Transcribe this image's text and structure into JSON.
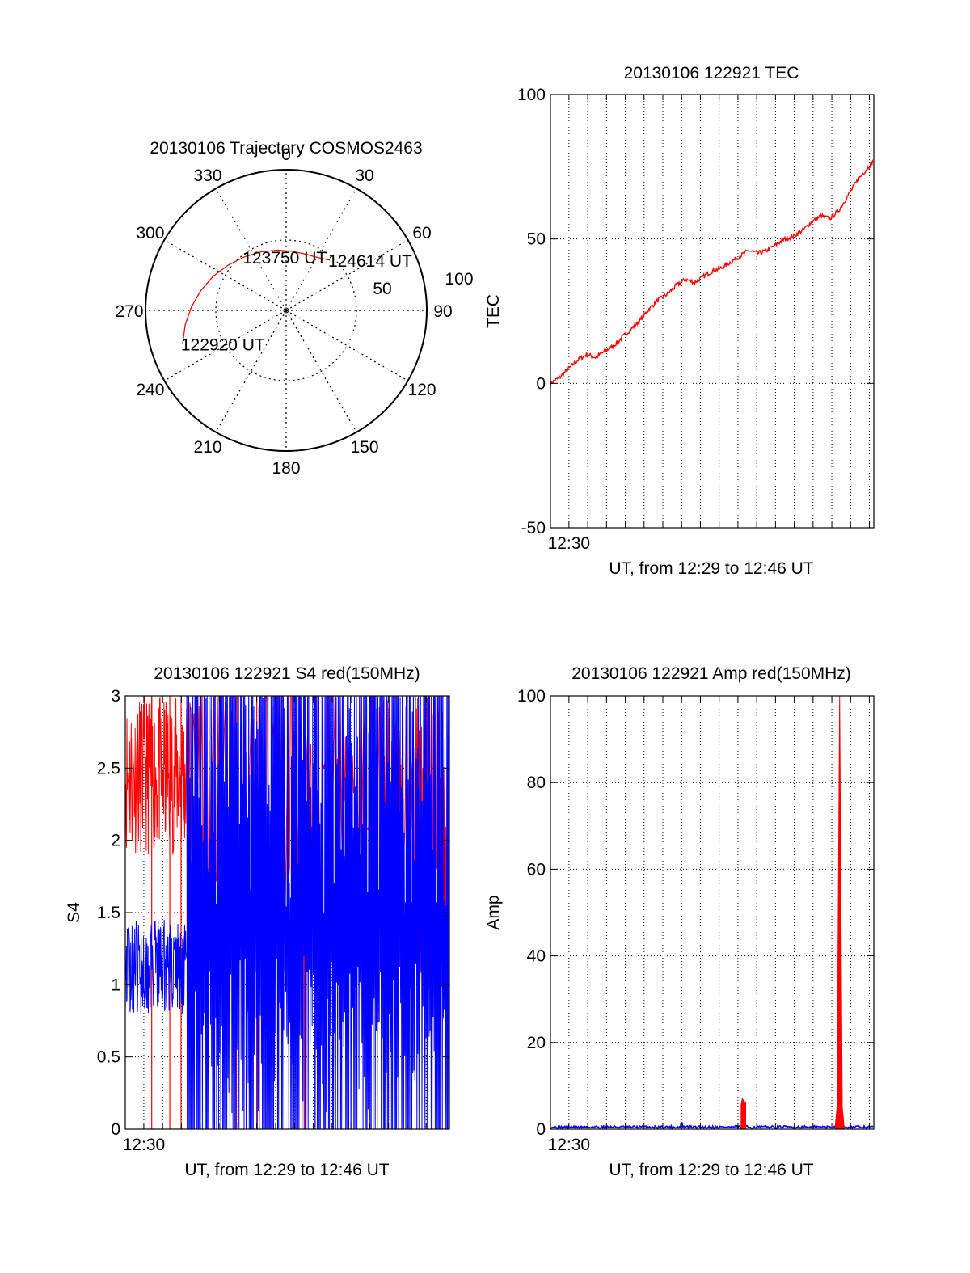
{
  "figure": {
    "colors": {
      "red": "#ff0000",
      "blue": "#0000ff",
      "axis": "#000000",
      "grid": "#000000"
    }
  },
  "chart_data": [
    {
      "id": "trajectory",
      "type": "polar",
      "title": "20130106 Trajectory COSMOS2463",
      "angle_labels": [
        "0",
        "30",
        "60",
        "90",
        "120",
        "150",
        "180",
        "210",
        "240",
        "270",
        "300",
        "330"
      ],
      "angle_values": [
        0,
        30,
        60,
        90,
        120,
        150,
        180,
        210,
        240,
        270,
        300,
        330
      ],
      "radius_labels": [
        "50",
        "100"
      ],
      "radius_values": [
        50,
        100
      ],
      "grid": true,
      "series": [
        {
          "color": "#ff0000",
          "points": [
            {
              "az": 252,
              "el": 13
            },
            {
              "az": 262,
              "el": 18
            },
            {
              "az": 272,
              "el": 23
            },
            {
              "az": 283,
              "el": 28
            },
            {
              "az": 295,
              "el": 33
            },
            {
              "az": 308,
              "el": 38
            },
            {
              "az": 322,
              "el": 42
            },
            {
              "az": 337,
              "el": 45
            },
            {
              "az": 352,
              "el": 47
            },
            {
              "az": 5,
              "el": 48
            },
            {
              "az": 18,
              "el": 48
            },
            {
              "az": 28,
              "el": 47
            },
            {
              "az": 36,
              "el": 45
            },
            {
              "az": 41,
              "el": 43
            }
          ]
        }
      ],
      "annotations": [
        {
          "text": "122920 UT",
          "az": 252,
          "el": 13
        },
        {
          "text": "123750 UT",
          "az": 322,
          "el": 42
        },
        {
          "text": "124614 UT",
          "az": 41,
          "el": 43
        }
      ]
    },
    {
      "id": "tec",
      "type": "line",
      "title": "20130106 122921 TEC",
      "xlabel": "UT, from 12:29 to 12:46 UT",
      "ylabel": "TEC",
      "xlim": [
        12.4836,
        12.7706
      ],
      "ylim": [
        -50,
        100
      ],
      "yticks": [
        -50,
        0,
        50,
        100
      ],
      "xtick_labels": [
        "12:30"
      ],
      "grid": true,
      "series": [
        {
          "color": "#ff0000",
          "x": [
            12.4836,
            12.4916,
            12.4996,
            12.5076,
            12.5156,
            12.5236,
            12.5316,
            12.5396,
            12.5476,
            12.5556,
            12.5636,
            12.5716,
            12.5796,
            12.5876,
            12.5956,
            12.6036,
            12.6116,
            12.6196,
            12.6276,
            12.6356,
            12.6436,
            12.6516,
            12.6596,
            12.6676,
            12.6756,
            12.6836,
            12.6916,
            12.6996,
            12.7076,
            12.7156,
            12.7236,
            12.7316,
            12.7396,
            12.7476,
            12.7556,
            12.7636,
            12.7706
          ],
          "values": [
            0,
            2,
            5,
            8,
            10,
            9,
            11,
            13,
            16,
            19,
            22,
            26,
            29,
            31,
            34,
            36,
            35,
            37,
            39,
            40,
            42,
            44,
            46,
            45,
            46,
            48,
            50,
            51,
            53,
            56,
            58,
            57,
            60,
            65,
            70,
            74,
            77
          ]
        }
      ]
    },
    {
      "id": "s4",
      "type": "line",
      "title": "20130106 122921 S4 red(150MHz)",
      "xlabel": "UT, from 12:29 to 12:46 UT",
      "ylabel": "S4",
      "xlim": [
        12.4836,
        12.7706
      ],
      "ylim": [
        0,
        3
      ],
      "yticks": [
        0,
        0.5,
        1,
        1.5,
        2,
        2.5,
        3
      ],
      "ytick_labels": [
        "0",
        "0.5",
        "1",
        "1.5",
        "2",
        "2.5",
        "3"
      ],
      "xtick_labels": [
        "12:30"
      ],
      "grid": true,
      "series": [
        {
          "color": "#ff0000",
          "segments": [
            {
              "x_start": 12.4836,
              "x_end": 12.539,
              "low": 1.9,
              "high": 3.0
            },
            {
              "x_start": 12.707,
              "x_end": 12.7706,
              "low": 0.9,
              "high": 3.0
            }
          ],
          "drops": [
            12.507,
            12.523,
            12.533,
            12.582,
            12.6,
            12.642
          ]
        },
        {
          "color": "#0000ff",
          "segments": [
            {
              "x_start": 12.4836,
              "x_end": 12.538,
              "low": 0.8,
              "high": 1.45
            },
            {
              "x_start": 12.538,
              "x_end": 12.7706,
              "low": 0.0,
              "high": 3.0
            }
          ]
        }
      ]
    },
    {
      "id": "amp",
      "type": "line",
      "title": "20130106 122921 Amp red(150MHz)",
      "xlabel": "UT, from 12:29 to 12:46 UT",
      "ylabel": "Amp",
      "xlim": [
        12.4836,
        12.7706
      ],
      "ylim": [
        0,
        100
      ],
      "yticks": [
        0,
        20,
        40,
        60,
        80,
        100
      ],
      "xtick_labels": [
        "12:30"
      ],
      "grid": true,
      "series": [
        {
          "color": "#0000ff",
          "baseline": 0.5,
          "bumps": [
            {
              "x": 12.6,
              "value": 1.5
            }
          ]
        },
        {
          "color": "#ff0000",
          "peaks": [
            {
              "x_start": 12.6528,
              "x_end": 12.6569,
              "value": 7
            },
            {
              "x_start": 12.7361,
              "x_end": 12.7444,
              "value": 100
            }
          ]
        }
      ]
    }
  ]
}
